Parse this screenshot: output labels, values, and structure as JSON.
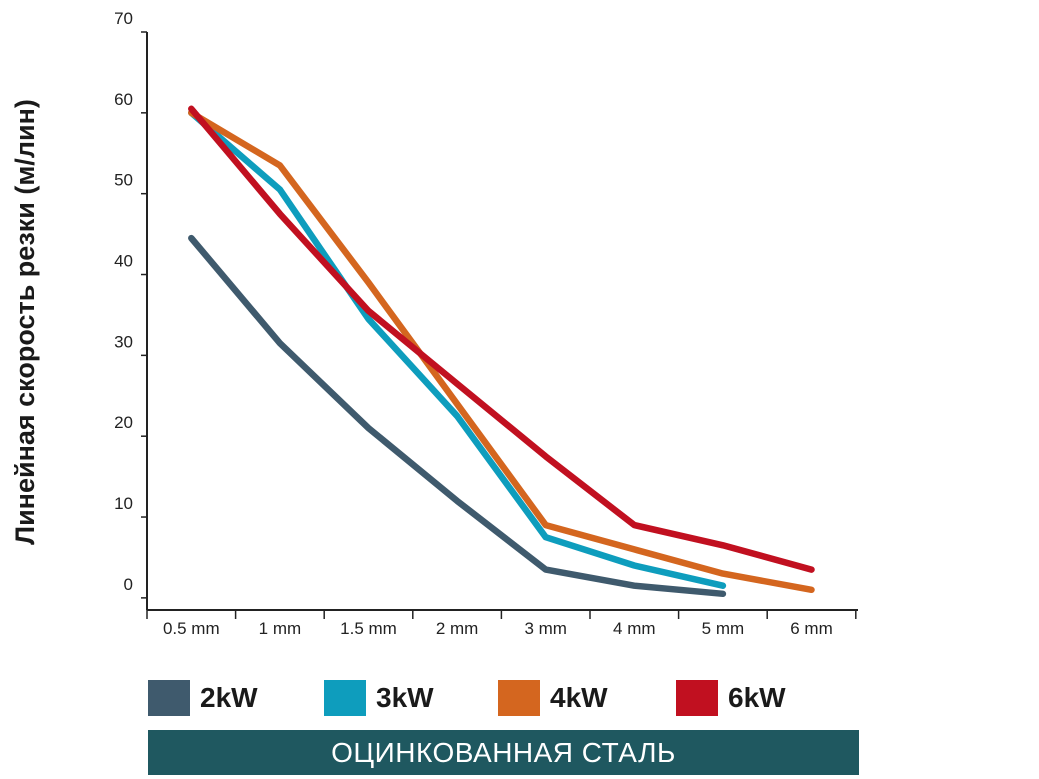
{
  "chart_data": {
    "type": "line",
    "ylabel": "Линейная скорость резки (м/лин)",
    "xlabel": "",
    "categories": [
      "0.5 mm",
      "1 mm",
      "1.5 mm",
      "2 mm",
      "3 mm",
      "4 mm",
      "5 mm",
      "6 mm"
    ],
    "y_ticks": [
      "0",
      "10",
      "20",
      "30",
      "40",
      "50",
      "60",
      "70"
    ],
    "ylim": [
      -1.5,
      70
    ],
    "grid": false,
    "legend_position": "bottom",
    "series": [
      {
        "name": "2kW",
        "color": "#3f5a6d",
        "values": [
          44.5,
          31.5,
          21,
          12,
          3.5,
          1.5,
          0.5,
          null
        ]
      },
      {
        "name": "3kW",
        "color": "#0e9dbd",
        "values": [
          60,
          50.5,
          34.5,
          22.5,
          7.5,
          4,
          1.5,
          null
        ]
      },
      {
        "name": "4kW",
        "color": "#d4661f",
        "values": [
          60,
          53.5,
          39,
          24,
          9,
          6,
          3,
          1
        ]
      },
      {
        "name": "6kW",
        "color": "#c11020",
        "values": [
          60.5,
          47.5,
          35.5,
          26.5,
          17.5,
          9,
          6.5,
          3.5
        ]
      }
    ]
  },
  "banner": {
    "text": "ОЦИНКОВАННАЯ СТАЛЬ"
  }
}
